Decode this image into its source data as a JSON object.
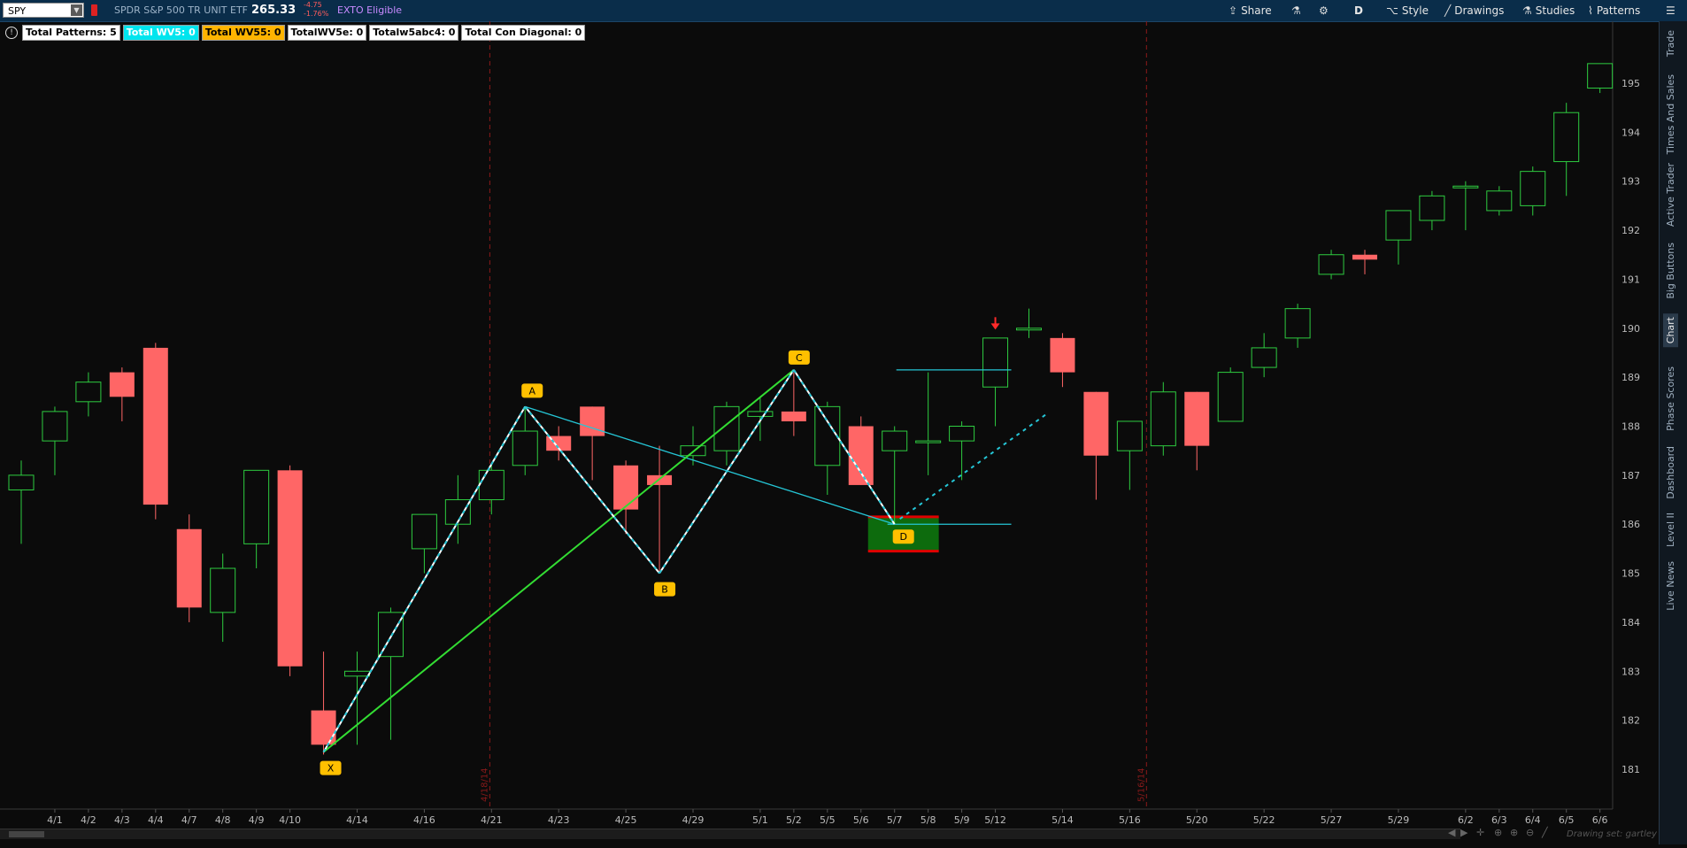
{
  "header": {
    "symbol": "SPY",
    "description": "SPDR S&P 500 TR UNIT ETF",
    "price": "265.33",
    "change": "-4.75",
    "change_pct": "-1.76%",
    "exto": "EXTO Eligible",
    "buttons": {
      "share": "Share",
      "period": "D",
      "style": "Style",
      "drawings": "Drawings",
      "studies": "Studies",
      "patterns": "Patterns"
    }
  },
  "right_dock": {
    "tabs": [
      "Trade",
      "Times And Sales",
      "Active Trader",
      "Big Buttons",
      "Chart",
      "Phase Scores",
      "Dashboard",
      "Level II",
      "Live News"
    ],
    "active": "Chart"
  },
  "pills": [
    {
      "label": "Total Patterns: 5",
      "bg": "#ffffff",
      "fg": "#000000"
    },
    {
      "label": "Total WV5: 0",
      "bg": "#00e5ee",
      "fg": "#ffffff"
    },
    {
      "label": "Total WV55: 0",
      "bg": "#ffb400",
      "fg": "#000000"
    },
    {
      "label": "TotalWV5e: 0",
      "bg": "#ffffff",
      "fg": "#000000"
    },
    {
      "label": "Totalw5abc4: 0",
      "bg": "#ffffff",
      "fg": "#000000"
    },
    {
      "label": "Total Con Diagonal: 0",
      "bg": "#ffffff",
      "fg": "#000000"
    }
  ],
  "chart_data": {
    "type": "candlestick",
    "ylim": [
      180.2,
      195.8
    ],
    "y_ticks": [
      181,
      182,
      183,
      184,
      185,
      186,
      187,
      188,
      189,
      190,
      191,
      192,
      193,
      194,
      195
    ],
    "bull_color": "#2ecc40",
    "bear_color": "#ff6666",
    "x_labels": [
      "4/1",
      "4/2",
      "4/3",
      "4/4",
      "4/7",
      "4/8",
      "4/9",
      "4/10",
      "4/14",
      "4/16",
      "4/21",
      "4/23",
      "4/25",
      "4/29",
      "5/1",
      "5/2",
      "5/5",
      "5/6",
      "5/7",
      "5/8",
      "5/9",
      "5/12",
      "5/14",
      "5/16",
      "5/20",
      "5/22",
      "5/27",
      "5/29",
      "6/2",
      "6/3",
      "6/4",
      "6/5",
      "6/6"
    ],
    "candles": [
      {
        "d": "3/31",
        "o": 186.7,
        "h": 187.3,
        "l": 185.6,
        "c": 187.0
      },
      {
        "d": "4/1",
        "o": 187.7,
        "h": 188.4,
        "l": 187.0,
        "c": 188.3
      },
      {
        "d": "4/2",
        "o": 188.5,
        "h": 189.1,
        "l": 188.2,
        "c": 188.9
      },
      {
        "d": "4/3",
        "o": 189.1,
        "h": 189.2,
        "l": 188.1,
        "c": 188.6
      },
      {
        "d": "4/4",
        "o": 189.6,
        "h": 189.7,
        "l": 186.1,
        "c": 186.4
      },
      {
        "d": "4/7",
        "o": 185.9,
        "h": 186.2,
        "l": 184.0,
        "c": 184.3
      },
      {
        "d": "4/8",
        "o": 184.2,
        "h": 185.4,
        "l": 183.6,
        "c": 185.1
      },
      {
        "d": "4/9",
        "o": 185.6,
        "h": 187.1,
        "l": 185.1,
        "c": 187.1
      },
      {
        "d": "4/10",
        "o": 187.1,
        "h": 187.2,
        "l": 182.9,
        "c": 183.1
      },
      {
        "d": "4/11",
        "o": 182.2,
        "h": 183.4,
        "l": 181.3,
        "c": 181.5
      },
      {
        "d": "4/14",
        "o": 182.9,
        "h": 183.4,
        "l": 181.5,
        "c": 183.0
      },
      {
        "d": "4/15",
        "o": 183.3,
        "h": 184.3,
        "l": 181.6,
        "c": 184.2
      },
      {
        "d": "4/16",
        "o": 185.5,
        "h": 186.2,
        "l": 185.0,
        "c": 186.2
      },
      {
        "d": "4/17",
        "o": 186.0,
        "h": 187.0,
        "l": 185.6,
        "c": 186.5
      },
      {
        "d": "4/21",
        "o": 186.5,
        "h": 187.2,
        "l": 186.2,
        "c": 187.1
      },
      {
        "d": "4/22",
        "o": 187.2,
        "h": 188.4,
        "l": 187.0,
        "c": 187.9
      },
      {
        "d": "4/23",
        "o": 187.8,
        "h": 188.0,
        "l": 187.3,
        "c": 187.5
      },
      {
        "d": "4/24",
        "o": 188.4,
        "h": 188.4,
        "l": 186.9,
        "c": 187.8
      },
      {
        "d": "4/25",
        "o": 187.2,
        "h": 187.3,
        "l": 185.8,
        "c": 186.3
      },
      {
        "d": "4/28",
        "o": 187.0,
        "h": 187.6,
        "l": 185.0,
        "c": 186.8
      },
      {
        "d": "4/29",
        "o": 187.4,
        "h": 188.0,
        "l": 187.2,
        "c": 187.6
      },
      {
        "d": "4/30",
        "o": 187.5,
        "h": 188.5,
        "l": 187.2,
        "c": 188.4
      },
      {
        "d": "5/1",
        "o": 188.2,
        "h": 188.6,
        "l": 187.7,
        "c": 188.3
      },
      {
        "d": "5/2",
        "o": 188.3,
        "h": 189.1,
        "l": 187.8,
        "c": 188.1
      },
      {
        "d": "5/5",
        "o": 187.2,
        "h": 188.5,
        "l": 186.6,
        "c": 188.4
      },
      {
        "d": "5/6",
        "o": 188.0,
        "h": 188.2,
        "l": 186.8,
        "c": 186.8
      },
      {
        "d": "5/7",
        "o": 187.5,
        "h": 188.0,
        "l": 186.0,
        "c": 187.9
      },
      {
        "d": "5/8",
        "o": 187.7,
        "h": 189.1,
        "l": 187.0,
        "c": 187.7
      },
      {
        "d": "5/9",
        "o": 187.7,
        "h": 188.1,
        "l": 186.9,
        "c": 188.0
      },
      {
        "d": "5/12",
        "o": 188.8,
        "h": 189.8,
        "l": 188.0,
        "c": 189.8
      },
      {
        "d": "5/13",
        "o": 190.0,
        "h": 190.4,
        "l": 189.8,
        "c": 190.0
      },
      {
        "d": "5/14",
        "o": 189.8,
        "h": 189.9,
        "l": 188.8,
        "c": 189.1
      },
      {
        "d": "5/15",
        "o": 188.7,
        "h": 188.7,
        "l": 186.5,
        "c": 187.4
      },
      {
        "d": "5/16",
        "o": 187.5,
        "h": 188.1,
        "l": 186.7,
        "c": 188.1
      },
      {
        "d": "5/19",
        "o": 187.6,
        "h": 188.9,
        "l": 187.4,
        "c": 188.7
      },
      {
        "d": "5/20",
        "o": 188.7,
        "h": 188.7,
        "l": 187.1,
        "c": 187.6
      },
      {
        "d": "5/21",
        "o": 188.1,
        "h": 189.2,
        "l": 188.1,
        "c": 189.1
      },
      {
        "d": "5/22",
        "o": 189.2,
        "h": 189.9,
        "l": 189.0,
        "c": 189.6
      },
      {
        "d": "5/23",
        "o": 189.8,
        "h": 190.5,
        "l": 189.6,
        "c": 190.4
      },
      {
        "d": "5/27",
        "o": 191.1,
        "h": 191.6,
        "l": 191.0,
        "c": 191.5
      },
      {
        "d": "5/28",
        "o": 191.5,
        "h": 191.6,
        "l": 191.1,
        "c": 191.4
      },
      {
        "d": "5/29",
        "o": 191.8,
        "h": 192.4,
        "l": 191.3,
        "c": 192.4
      },
      {
        "d": "5/30",
        "o": 192.2,
        "h": 192.8,
        "l": 192.0,
        "c": 192.7
      },
      {
        "d": "6/2",
        "o": 192.9,
        "h": 193.0,
        "l": 192.0,
        "c": 192.9
      },
      {
        "d": "6/3",
        "o": 192.4,
        "h": 192.9,
        "l": 192.3,
        "c": 192.8
      },
      {
        "d": "6/4",
        "o": 192.5,
        "h": 193.3,
        "l": 192.3,
        "c": 193.2
      },
      {
        "d": "6/5",
        "o": 193.4,
        "h": 194.6,
        "l": 192.7,
        "c": 194.4
      },
      {
        "d": "6/6",
        "o": 194.9,
        "h": 195.4,
        "l": 194.8,
        "c": 195.4
      }
    ],
    "pattern_points": [
      {
        "label": "X",
        "d": "4/11",
        "v": 181.35
      },
      {
        "label": "A",
        "d": "4/22",
        "v": 188.4
      },
      {
        "label": "B",
        "d": "4/28",
        "v": 185.0
      },
      {
        "label": "C",
        "d": "5/2",
        "v": 189.15
      },
      {
        "label": "D",
        "d": "5/7",
        "v": 186.0
      }
    ],
    "divider_dates": [
      "4/18/14",
      "5/16/14"
    ],
    "prz_zone": {
      "from": "5/6",
      "to": "5/8",
      "top": 186.15,
      "bottom": 185.45
    },
    "target_line": {
      "from": "5/7",
      "to": "5/12",
      "v": 189.15
    },
    "d_level_line": {
      "from": "5/7",
      "to": "5/12",
      "v": 186.0
    },
    "projection": {
      "from": {
        "d": "5/7",
        "v": 186.0
      },
      "to": {
        "d": "5/13",
        "v": 188.25
      }
    },
    "sell_arrow": {
      "d": "5/12",
      "v": 189.9
    }
  },
  "bottom": {
    "drawing_set": "Drawing set: gartley"
  }
}
